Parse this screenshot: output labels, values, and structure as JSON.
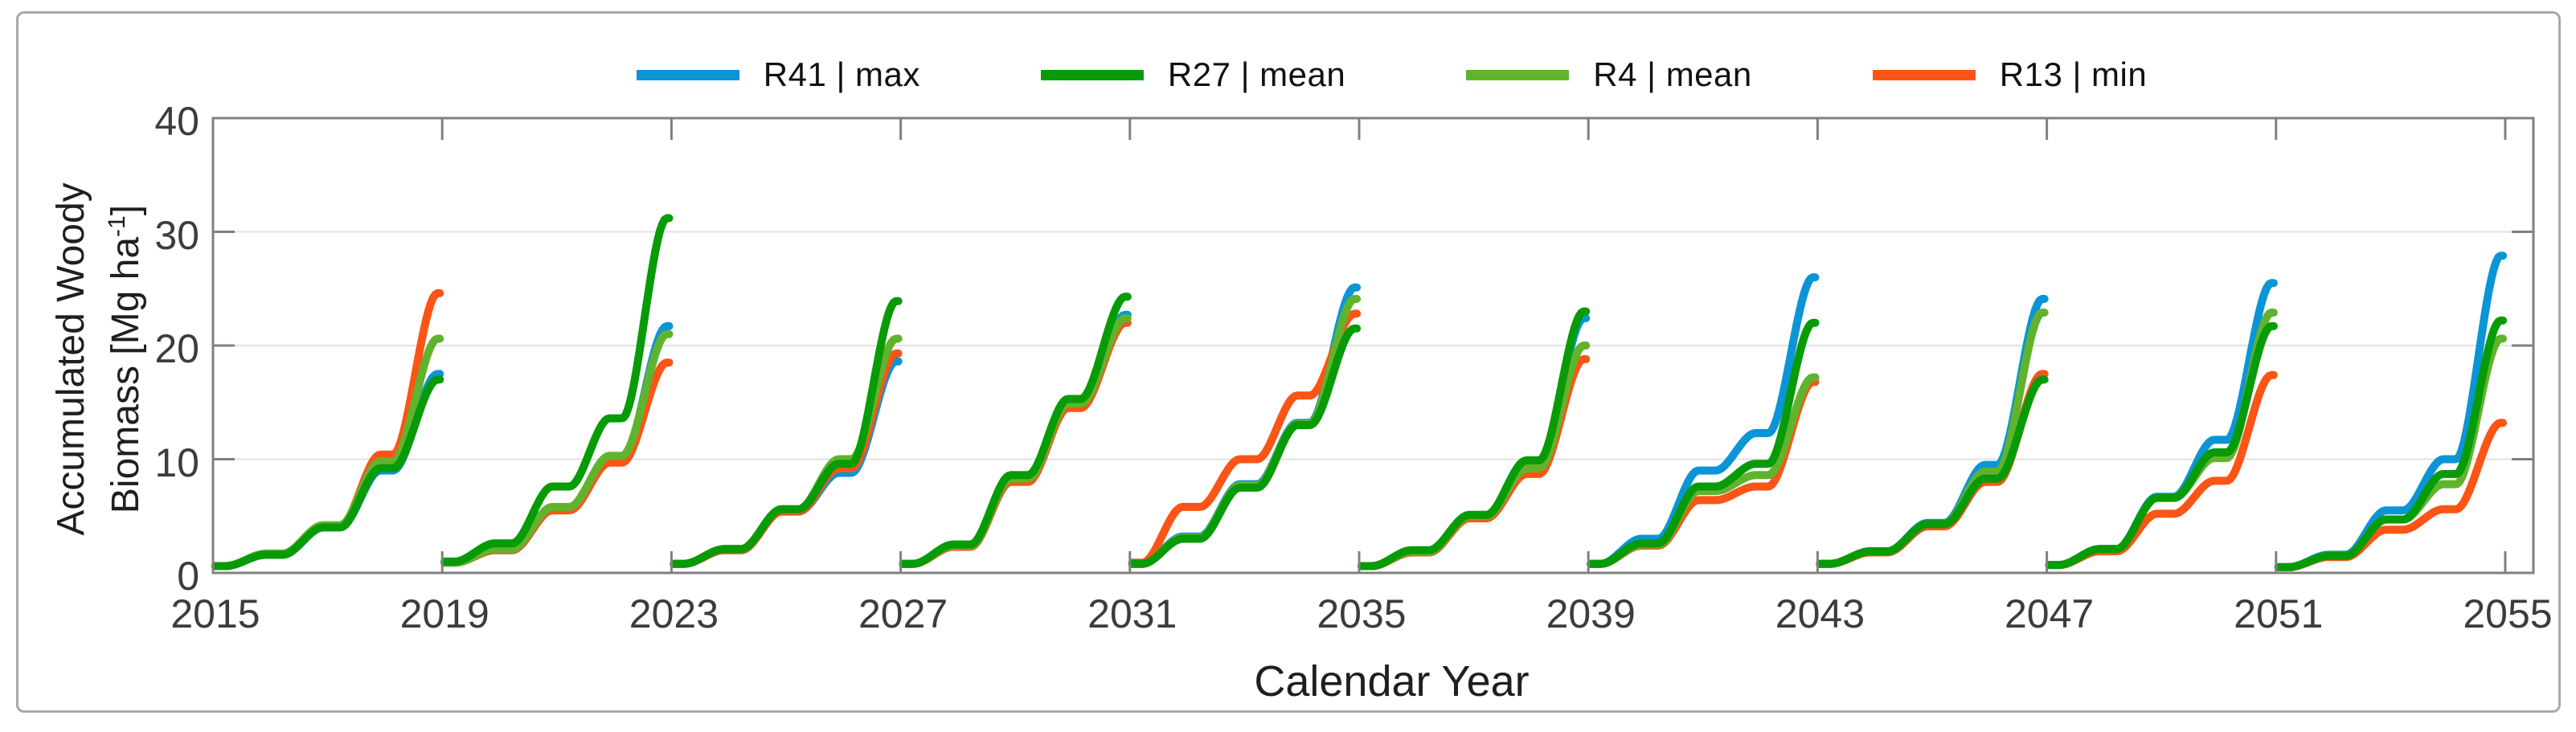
{
  "figure": {
    "background": "#ffffff",
    "border_color": "#a9a9a9",
    "axis_color": "#808080",
    "grid_color": "#e2e2e2",
    "text_color": "#3c3c3c"
  },
  "chart_data": {
    "type": "line",
    "title": "",
    "xlabel": "Calendar Year",
    "ylabel_line1": "Accumulated Woody",
    "ylabel_line2_pre": "Biomass [Mg ha",
    "ylabel_superscript": "-1",
    "ylabel_line2_post": "]",
    "xlim": [
      2015,
      2055.5
    ],
    "ylim": [
      0,
      40
    ],
    "x_ticks": [
      2015,
      2019,
      2023,
      2027,
      2031,
      2035,
      2039,
      2043,
      2047,
      2051,
      2055
    ],
    "y_ticks": [
      0,
      10,
      20,
      30,
      40
    ],
    "grid": "horizontal gridlines at 10, 20, 30",
    "legend_position": "top center",
    "description": "Accumulated woody biomass over repeated 4-year rotation cycles; each cycle resets to ~0.5-1 Mg/ha at the start year and grows to a peak just before the next cycle. Values per cycle are [start, year1, year2, year3, peak].",
    "cycle_length_years": 4,
    "cycle_start_years": [
      2015,
      2019,
      2023,
      2027,
      2031,
      2035,
      2039,
      2043,
      2047,
      2051
    ],
    "series": [
      {
        "name": "R41 | max",
        "color": "#0b95d6",
        "cycle_values": [
          [
            0.6,
            1.6,
            4.0,
            9.0,
            17.5
          ],
          [
            0.9,
            2.0,
            5.6,
            10.0,
            21.7
          ],
          [
            0.8,
            2.0,
            5.4,
            8.8,
            18.6
          ],
          [
            0.8,
            2.4,
            8.2,
            14.8,
            22.7
          ],
          [
            0.8,
            3.2,
            7.8,
            13.2,
            25.1
          ],
          [
            0.6,
            1.9,
            5.0,
            9.7,
            22.4
          ],
          [
            0.8,
            3.0,
            9.0,
            12.3,
            26.0
          ],
          [
            0.8,
            1.9,
            4.4,
            9.5,
            24.1
          ],
          [
            0.7,
            2.1,
            6.7,
            11.7,
            25.5
          ],
          [
            0.5,
            1.6,
            5.5,
            10.0,
            27.9
          ]
        ]
      },
      {
        "name": "R27 | mean",
        "color": "#079b07",
        "cycle_values": [
          [
            0.6,
            1.6,
            4.0,
            9.2,
            17.0
          ],
          [
            1.0,
            2.6,
            7.6,
            13.6,
            31.2
          ],
          [
            0.8,
            2.1,
            5.6,
            9.6,
            23.9
          ],
          [
            0.8,
            2.5,
            8.6,
            15.3,
            24.3
          ],
          [
            0.8,
            3.0,
            7.5,
            13.0,
            21.5
          ],
          [
            0.6,
            2.0,
            5.1,
            9.9,
            23.0
          ],
          [
            0.8,
            2.6,
            7.6,
            9.6,
            22.0
          ],
          [
            0.8,
            1.9,
            4.3,
            8.3,
            17.0
          ],
          [
            0.7,
            2.1,
            6.6,
            10.6,
            21.7
          ],
          [
            0.5,
            1.5,
            4.7,
            8.7,
            22.2
          ]
        ]
      },
      {
        "name": "R4  | mean",
        "color": "#61b32e",
        "cycle_values": [
          [
            0.6,
            1.7,
            4.2,
            9.8,
            20.6
          ],
          [
            0.9,
            2.1,
            5.8,
            10.3,
            21.0
          ],
          [
            0.8,
            2.1,
            5.6,
            10.0,
            20.6
          ],
          [
            0.8,
            2.4,
            8.3,
            14.9,
            22.4
          ],
          [
            0.8,
            3.1,
            7.7,
            13.1,
            24.1
          ],
          [
            0.6,
            1.9,
            5.0,
            9.2,
            20.0
          ],
          [
            0.8,
            2.5,
            7.2,
            8.6,
            17.2
          ],
          [
            0.8,
            1.9,
            4.3,
            8.9,
            22.9
          ],
          [
            0.7,
            2.1,
            6.6,
            10.1,
            22.9
          ],
          [
            0.5,
            1.5,
            4.7,
            7.8,
            20.6
          ]
        ]
      },
      {
        "name": "R13 | min",
        "color": "#fa5516",
        "cycle_values": [
          [
            0.6,
            1.6,
            4.1,
            10.4,
            24.6
          ],
          [
            0.9,
            2.0,
            5.5,
            9.7,
            18.5
          ],
          [
            0.8,
            2.0,
            5.4,
            9.2,
            19.3
          ],
          [
            0.8,
            2.3,
            8.0,
            14.5,
            22.0
          ],
          [
            0.9,
            5.8,
            10.0,
            15.6,
            22.8
          ],
          [
            0.6,
            1.8,
            4.8,
            8.7,
            18.8
          ],
          [
            0.8,
            2.4,
            6.4,
            7.6,
            16.8
          ],
          [
            0.8,
            1.8,
            4.1,
            8.0,
            17.5
          ],
          [
            0.7,
            1.9,
            5.2,
            8.1,
            17.4
          ],
          [
            0.5,
            1.4,
            3.8,
            5.6,
            13.2
          ]
        ]
      }
    ]
  }
}
